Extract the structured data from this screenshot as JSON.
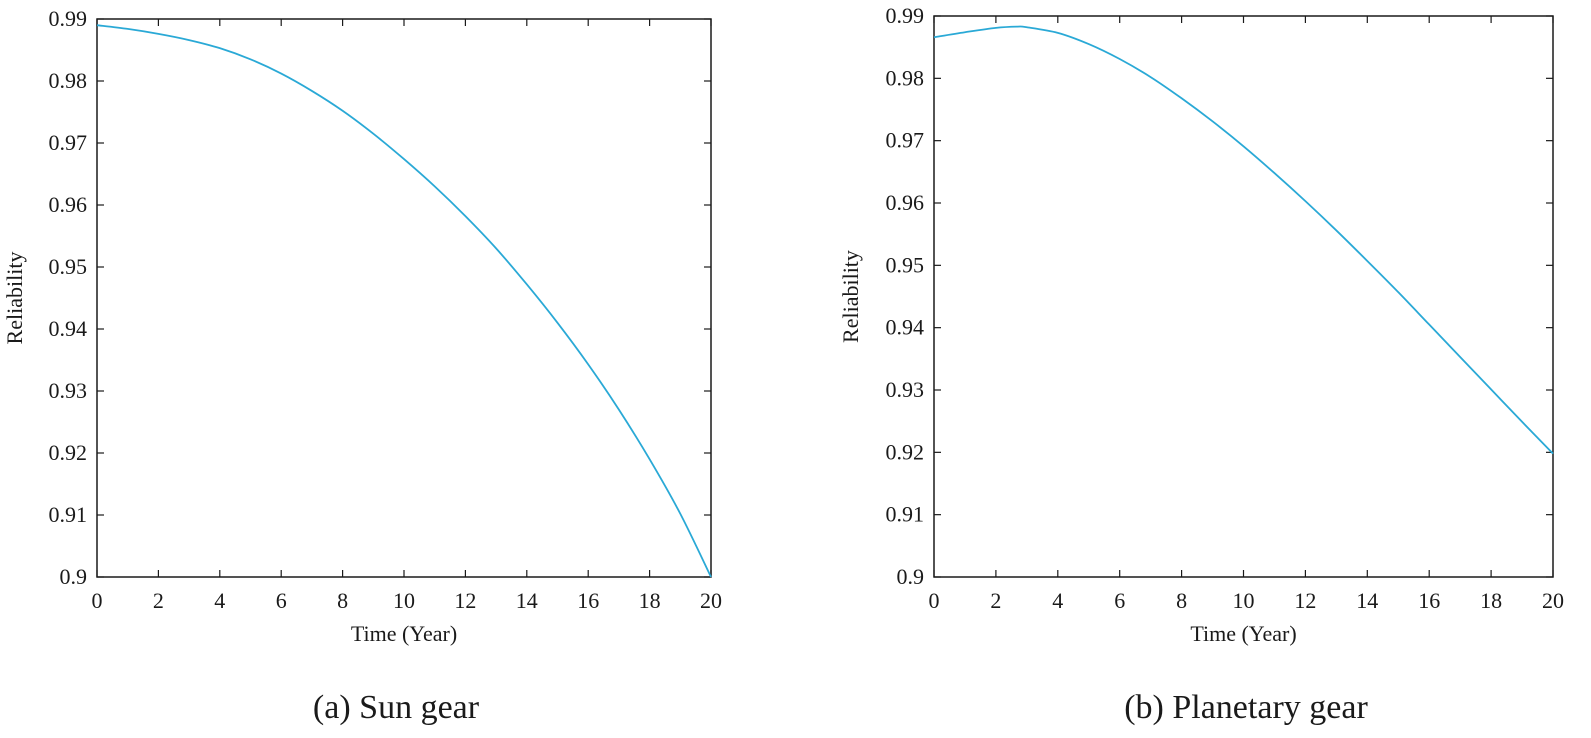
{
  "chart_data": [
    {
      "type": "line",
      "caption": "(a) Sun gear",
      "xlabel": "Time (Year)",
      "ylabel": "Reliability",
      "xlim": [
        0,
        20
      ],
      "ylim": [
        0.9,
        0.99
      ],
      "xticks": [
        "0",
        "2",
        "4",
        "6",
        "8",
        "10",
        "12",
        "14",
        "16",
        "18",
        "20"
      ],
      "yticks": [
        "0.9",
        "0.91",
        "0.92",
        "0.93",
        "0.94",
        "0.95",
        "0.96",
        "0.97",
        "0.98",
        "0.99"
      ],
      "grid": false,
      "color": "#2aa9d6",
      "series": [
        {
          "name": "Sun gear",
          "x": [
            0,
            1,
            2,
            3,
            4,
            5,
            6,
            7,
            8,
            9,
            10,
            11,
            12,
            13,
            14,
            15,
            16,
            17,
            18,
            19,
            20
          ],
          "y": [
            0.989,
            0.9884,
            0.9876,
            0.9866,
            0.9853,
            0.9835,
            0.9812,
            0.9784,
            0.9752,
            0.9715,
            0.9674,
            0.963,
            0.9582,
            0.953,
            0.9472,
            0.941,
            0.9343,
            0.927,
            0.919,
            0.9102,
            0.9
          ]
        }
      ]
    },
    {
      "type": "line",
      "caption": "(b) Planetary gear",
      "xlabel": "Time (Year)",
      "ylabel": "Reliability",
      "xlim": [
        0,
        20
      ],
      "ylim": [
        0.9,
        0.99
      ],
      "xticks": [
        "0",
        "2",
        "4",
        "6",
        "8",
        "10",
        "12",
        "14",
        "16",
        "18",
        "20"
      ],
      "yticks": [
        "0.9",
        "0.91",
        "0.92",
        "0.93",
        "0.94",
        "0.95",
        "0.96",
        "0.97",
        "0.98",
        "0.99"
      ],
      "grid": false,
      "color": "#2aa9d6",
      "series": [
        {
          "name": "Planetary gear",
          "x": [
            0,
            1,
            2,
            2.7,
            3,
            4,
            5,
            6,
            7,
            8,
            9,
            10,
            11,
            12,
            13,
            14,
            15,
            16,
            17,
            18,
            19,
            20
          ],
          "y": [
            0.9866,
            0.9874,
            0.9881,
            0.9883,
            0.9882,
            0.9873,
            0.9855,
            0.9831,
            0.9802,
            0.9768,
            0.9731,
            0.9691,
            0.9648,
            0.9603,
            0.9556,
            0.9507,
            0.9457,
            0.9405,
            0.9353,
            0.9301,
            0.9249,
            0.9198
          ]
        }
      ]
    }
  ]
}
